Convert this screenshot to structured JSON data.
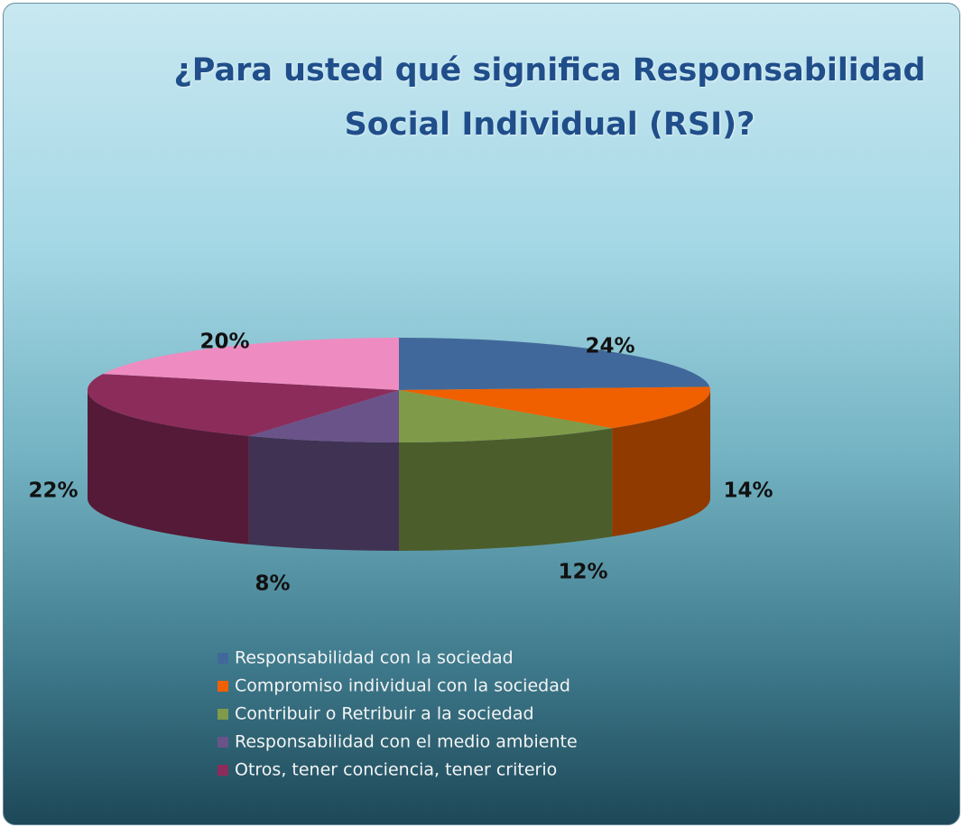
{
  "chart_data": {
    "type": "pie3d",
    "title": "¿Para usted qué significa Responsabilidad Social Individual (RSI)?",
    "categories": [
      "Responsabilidad con la sociedad",
      "Compromiso individual con la sociedad",
      "Contribuir o Retribuir a la sociedad",
      "Responsabilidad con el medio ambiente",
      "Otros, tener conciencia, tener criterio",
      null
    ],
    "values": [
      24,
      14,
      12,
      8,
      22,
      20
    ],
    "value_labels": [
      "24%",
      "14%",
      "12%",
      "8%",
      "22%",
      "20%"
    ],
    "colors": [
      "#41689a",
      "#f06000",
      "#7f9b4a",
      "#6a5389",
      "#8c2c5b",
      "#ee8cc1"
    ],
    "legend": "bottom"
  }
}
